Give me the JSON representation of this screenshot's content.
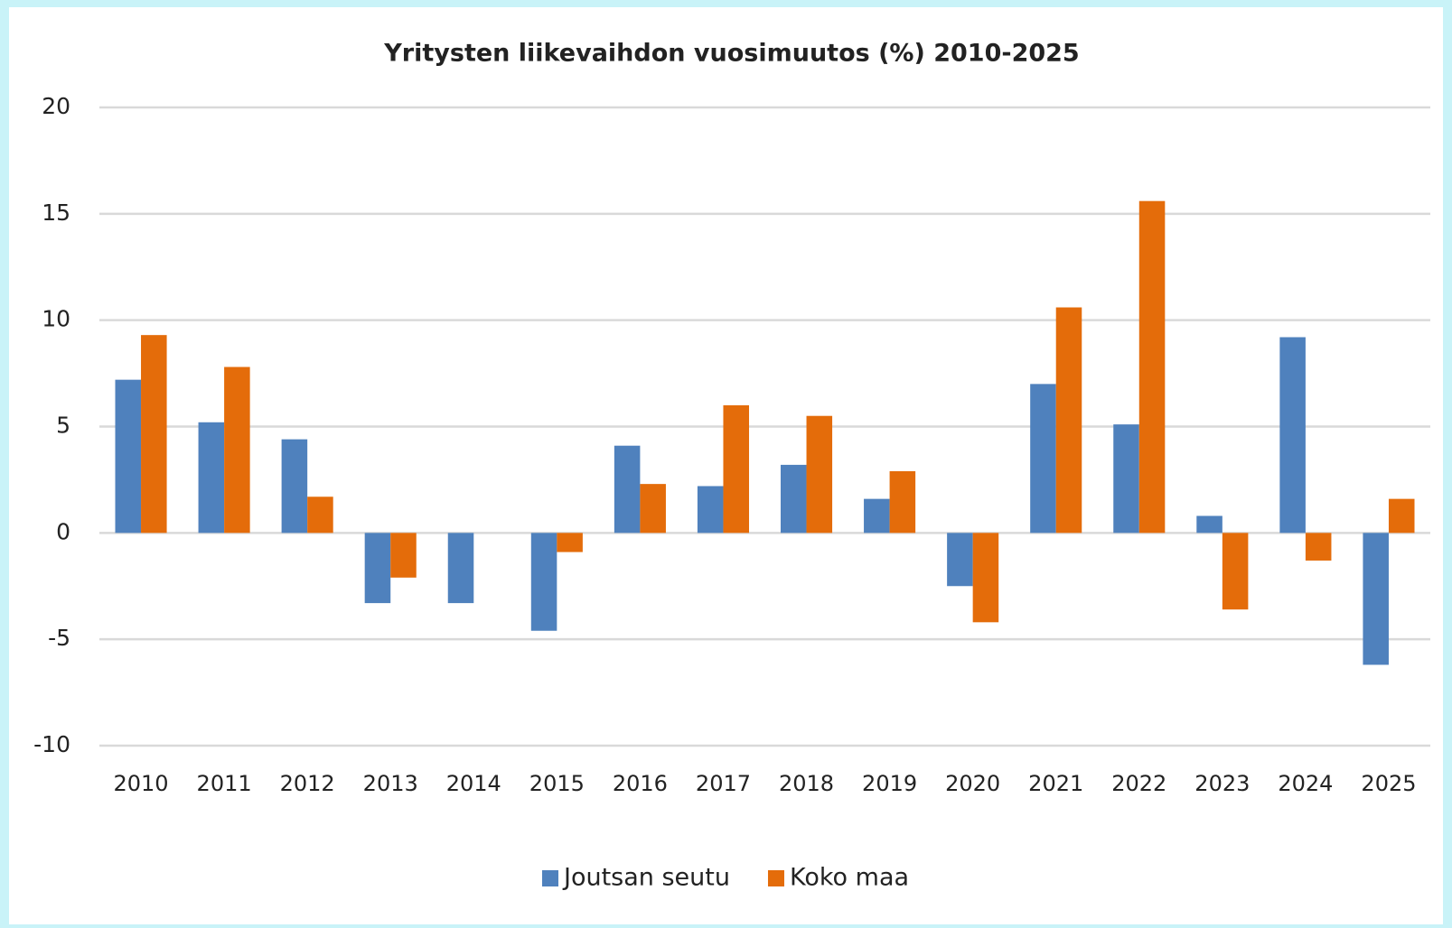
{
  "chart_data": {
    "type": "bar",
    "title": "Yritysten liikevaihdon vuosimuutos (%) 2010-2025",
    "categories": [
      "2010",
      "2011",
      "2012",
      "2013",
      "2014",
      "2015",
      "2016",
      "2017",
      "2018",
      "2019",
      "2020",
      "2021",
      "2022",
      "2023",
      "2024",
      "2025"
    ],
    "series": [
      {
        "name": "Joutsan seutu",
        "color": "#4f81bd",
        "values": [
          7.2,
          5.2,
          4.4,
          -3.3,
          -3.3,
          -4.6,
          4.1,
          2.2,
          3.2,
          1.6,
          -2.5,
          7.0,
          5.1,
          0.8,
          9.2,
          -6.2
        ]
      },
      {
        "name": "Koko maa",
        "color": "#e46c0a",
        "values": [
          9.3,
          7.8,
          1.7,
          -2.1,
          0,
          -0.9,
          2.3,
          6.0,
          5.5,
          2.9,
          -4.2,
          10.6,
          15.6,
          -3.6,
          -1.3,
          1.6
        ]
      }
    ],
    "ylim": [
      -10,
      20
    ],
    "yticks": [
      -10,
      -5,
      0,
      5,
      10,
      15,
      20
    ],
    "grid": true,
    "legend": "bottom"
  }
}
